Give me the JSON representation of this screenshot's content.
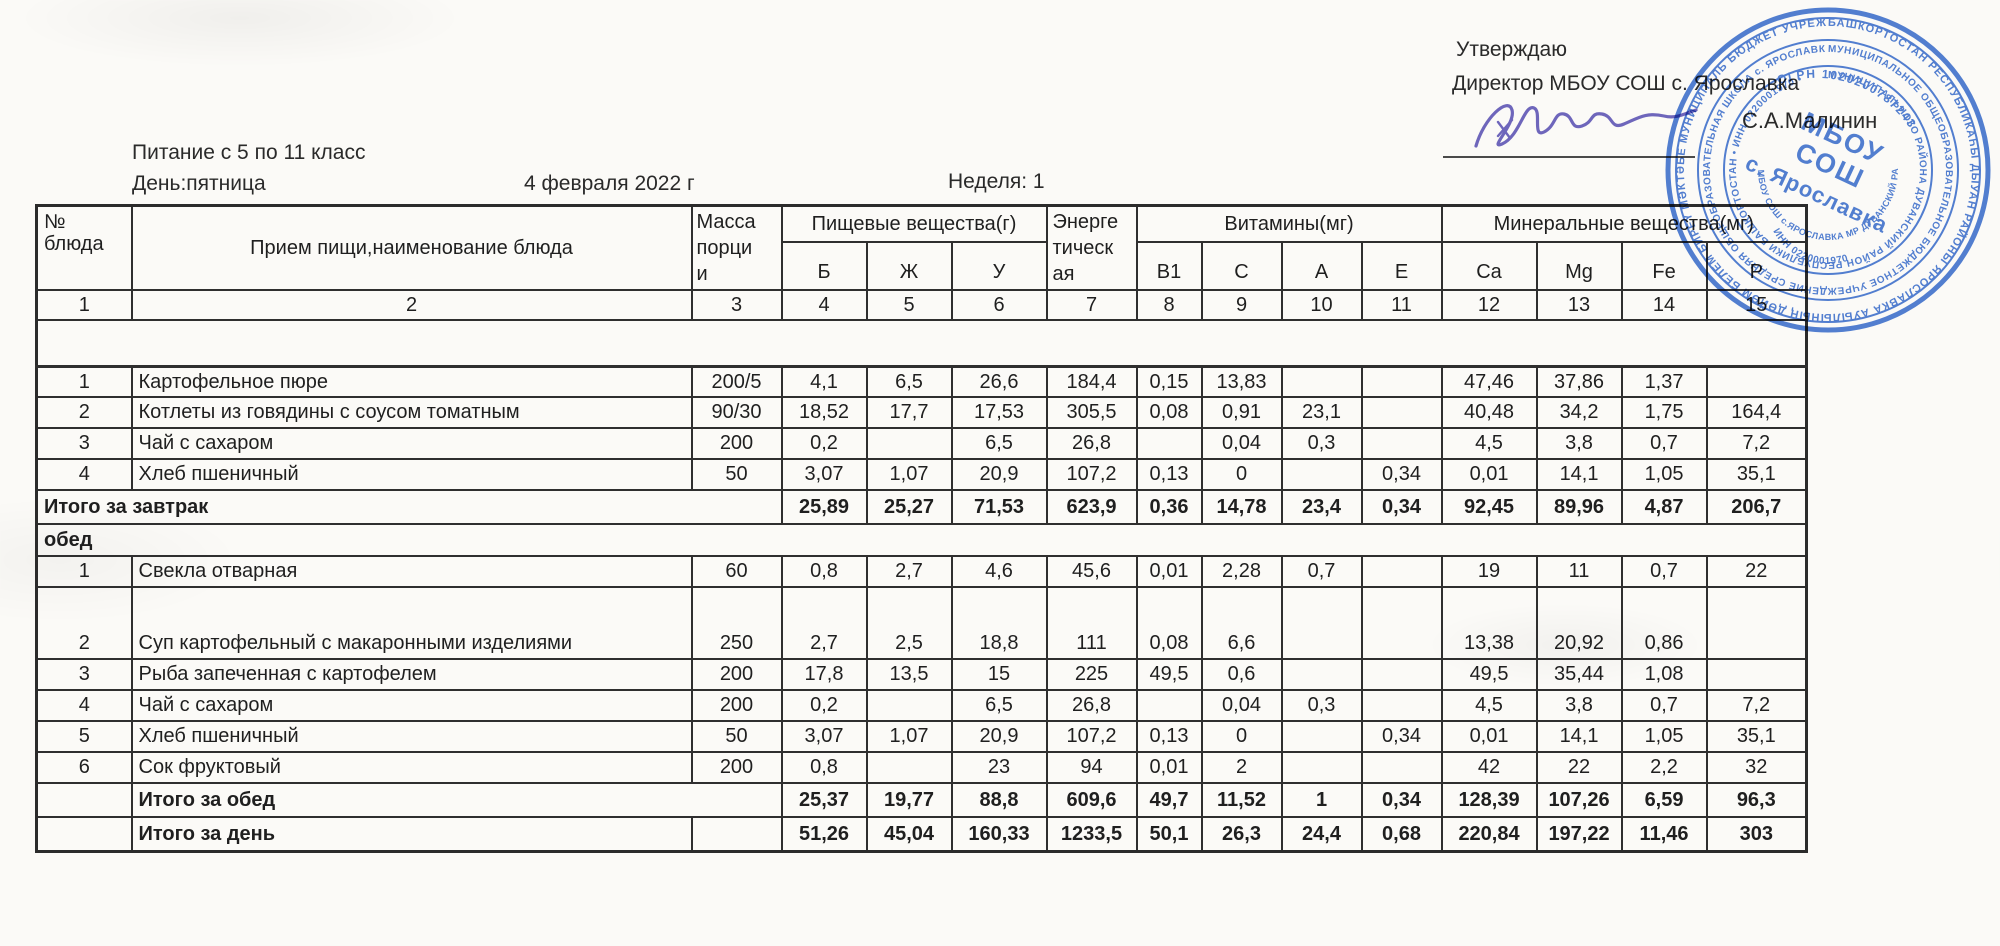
{
  "page": {
    "approve_label": "Утверждаю",
    "director_line": "Директор МБОУ СОШ с. Ярославка",
    "director_name": "С.А.Малинин",
    "title": "Питание с 5 по 11 класс",
    "day_label": "День:пятница",
    "date_label": "4 февраля  2022 г",
    "week_label": "Неделя: 1"
  },
  "colors": {
    "stamp_blue": "#3b6fd1",
    "signature_blue": "#6e66bb",
    "border": "#2f2f2f",
    "text": "#1f1f1f"
  },
  "table": {
    "header": {
      "num": "№\nблюда",
      "meal": "Прием пищи,наименование блюда",
      "mass": "Масса\nпорци\nи",
      "nutrients_group": "Пищевые вещества(г)",
      "energy": "Энерге\nтическ\nая",
      "vitamins_group": "Витамины(мг)",
      "minerals_group": "Минеральные вещества(мг)",
      "sub": [
        "Б",
        "Ж",
        "У",
        "В1",
        "С",
        "А",
        "Е",
        "Ca",
        "Mg",
        "Fe",
        "P"
      ]
    },
    "rows": [
      {
        "type": "colnums",
        "cells": [
          "1",
          "2",
          "3",
          "4",
          "5",
          "6",
          "7",
          "8",
          "9",
          "10",
          "11",
          "12",
          "13",
          "14",
          "15"
        ]
      },
      {
        "type": "empty"
      },
      {
        "type": "dish",
        "num": "1",
        "name": "Картофельное пюре",
        "mass": "200/5",
        "values": [
          "4,1",
          "6,5",
          "26,6",
          "184,4",
          "0,15",
          "13,83",
          "",
          "",
          "47,46",
          "37,86",
          "1,37",
          ""
        ]
      },
      {
        "type": "dish",
        "num": "2",
        "name": "Котлеты из говядины с соусом томатным",
        "mass": "90/30",
        "values": [
          "18,52",
          "17,7",
          "17,53",
          "305,5",
          "0,08",
          "0,91",
          "23,1",
          "",
          "40,48",
          "34,2",
          "1,75",
          "164,4"
        ]
      },
      {
        "type": "dish",
        "num": "3",
        "name": "Чай с сахаром",
        "mass": "200",
        "values": [
          "0,2",
          "",
          "6,5",
          "26,8",
          "",
          "0,04",
          "0,3",
          "",
          "4,5",
          "3,8",
          "0,7",
          "7,2"
        ]
      },
      {
        "type": "dish",
        "num": "4",
        "name": "Хлеб пшеничный",
        "mass": "50",
        "values": [
          "3,07",
          "1,07",
          "20,9",
          "107,2",
          "0,13",
          "0",
          "",
          "0,34",
          "0,01",
          "14,1",
          "1,05",
          "35,1"
        ]
      },
      {
        "type": "total_span3",
        "label": "Итого за завтрак",
        "values": [
          "25,89",
          "25,27",
          "71,53",
          "623,9",
          "0,36",
          "14,78",
          "23,4",
          "0,34",
          "92,45",
          "89,96",
          "4,87",
          "206,7"
        ]
      },
      {
        "type": "section",
        "label": "обед"
      },
      {
        "type": "dish",
        "num": "1",
        "name": "Свекла отварная",
        "mass": "60",
        "values": [
          "0,8",
          "2,7",
          "4,6",
          "45,6",
          "0,01",
          "2,28",
          "0,7",
          "",
          "19",
          "11",
          "0,7",
          "22"
        ]
      },
      {
        "type": "dish",
        "tall": true,
        "num": "2",
        "name": "Суп картофельный с макаронными изделиями",
        "mass": "250",
        "values": [
          "2,7",
          "2,5",
          "18,8",
          "111",
          "0,08",
          "6,6",
          "",
          "",
          "13,38",
          "20,92",
          "0,86",
          ""
        ]
      },
      {
        "type": "dish",
        "num": "3",
        "name": "Рыба запеченная с картофелем",
        "mass": "200",
        "values": [
          "17,8",
          "13,5",
          "15",
          "225",
          "49,5",
          "0,6",
          "",
          "",
          "49,5",
          "35,44",
          "1,08",
          ""
        ]
      },
      {
        "type": "dish",
        "num": "4",
        "name": "Чай с сахаром",
        "mass": "200",
        "values": [
          "0,2",
          "",
          "6,5",
          "26,8",
          "",
          "0,04",
          "0,3",
          "",
          "4,5",
          "3,8",
          "0,7",
          "7,2"
        ]
      },
      {
        "type": "dish",
        "num": "5",
        "name": "Хлеб пшеничный",
        "mass": "50",
        "values": [
          "3,07",
          "1,07",
          "20,9",
          "107,2",
          "0,13",
          "0",
          "",
          "0,34",
          "0,01",
          "14,1",
          "1,05",
          "35,1"
        ]
      },
      {
        "type": "dish",
        "num": "6",
        "name": "Сок фруктовый",
        "mass": "200",
        "values": [
          "0,8",
          "",
          "23",
          "94",
          "0,01",
          "2",
          "",
          "",
          "42",
          "22",
          "2,2",
          "32"
        ]
      },
      {
        "type": "total_num_empty",
        "label": "Итого за обед",
        "values": [
          "25,37",
          "19,77",
          "88,8",
          "609,6",
          "49,7",
          "11,52",
          "1",
          "0,34",
          "128,39",
          "107,26",
          "6,59",
          "96,3"
        ]
      },
      {
        "type": "total_mass_empty",
        "label": "Итого за день",
        "values": [
          "51,26",
          "45,04",
          "160,33",
          "1233,5",
          "50,1",
          "26,3",
          "24,4",
          "0,68",
          "220,84",
          "197,22",
          "11,46",
          "303"
        ]
      }
    ]
  },
  "stamp": {
    "ring_outer": "БАШКОРТОСТАН РЕСПУБЛИКАҺЫ ДЫУАН РАЙОНЫ ЯРОСЛАВКА АУЫЛЫНЫҢ ДӨЙӨМ БЕЛЕМ БИРЕҮ МӘКТӘБЕ МУНИЦИПАЛЬ БЮДЖЕТ УЧРЕЖДЕНИЕҺЫ •",
    "ring_middle": "МУНИЦИПАЛЬНОЕ ОБЩЕОБРАЗОВАТЕЛЬНОЕ БЮДЖЕТНОЕ УЧРЕЖДЕНИЕ СРЕДНЯЯ ОБЩЕОБРАЗОВАТЕЛЬНАЯ ШКОЛА с. ЯРОСЛАВКА •",
    "ring_inner": "МУНИЦИПАЛЬНОГО РАЙОНА ДУВАНСКИЙ РАЙОН РЕСПУБЛИКИ БАШКОРТОСТАН • ИНН 0220001970 •",
    "bottom_arc": "МБОУ СОШ с.ЯРОСЛАВКА МР ДУВАНСКИЙ РАЙОН",
    "ogrn": "ОГРН 1020200787243",
    "inn": "ИНН 0220001970",
    "center_line1": "МБОУ",
    "center_line2": "СОШ",
    "center_line3": "с. Ярославка"
  }
}
